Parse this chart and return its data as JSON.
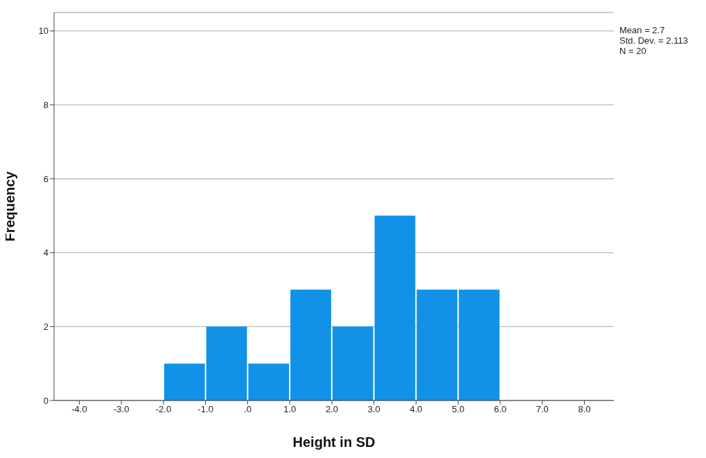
{
  "chart_data": {
    "type": "histogram",
    "xlabel": "Height in SD",
    "ylabel": "Frequency",
    "bins": [
      -2,
      -1,
      0,
      1,
      2,
      3,
      4,
      5,
      6
    ],
    "values": [
      1,
      2,
      1,
      3,
      2,
      5,
      3,
      3
    ],
    "color": "#1192e8",
    "xlim": [
      -4.6,
      8.7
    ],
    "xticks": [
      {
        "value": -4,
        "label": "-4.0"
      },
      {
        "value": -3,
        "label": "-3.0"
      },
      {
        "value": -2,
        "label": "-2.0"
      },
      {
        "value": -1,
        "label": "-1.0"
      },
      {
        "value": 0,
        "label": ".0"
      },
      {
        "value": 1,
        "label": "1.0"
      },
      {
        "value": 2,
        "label": "2.0"
      },
      {
        "value": 3,
        "label": "3.0"
      },
      {
        "value": 4,
        "label": "4.0"
      },
      {
        "value": 5,
        "label": "5.0"
      },
      {
        "value": 6,
        "label": "6.0"
      },
      {
        "value": 7,
        "label": "7.0"
      },
      {
        "value": 8,
        "label": "8.0"
      }
    ],
    "ylim": [
      0,
      10.5
    ],
    "yticks": [
      0,
      2,
      4,
      6,
      8,
      10
    ],
    "grid": "y",
    "annotations": [
      "Mean = 2.7",
      "Std. Dev. = 2.113",
      "N = 20"
    ]
  }
}
